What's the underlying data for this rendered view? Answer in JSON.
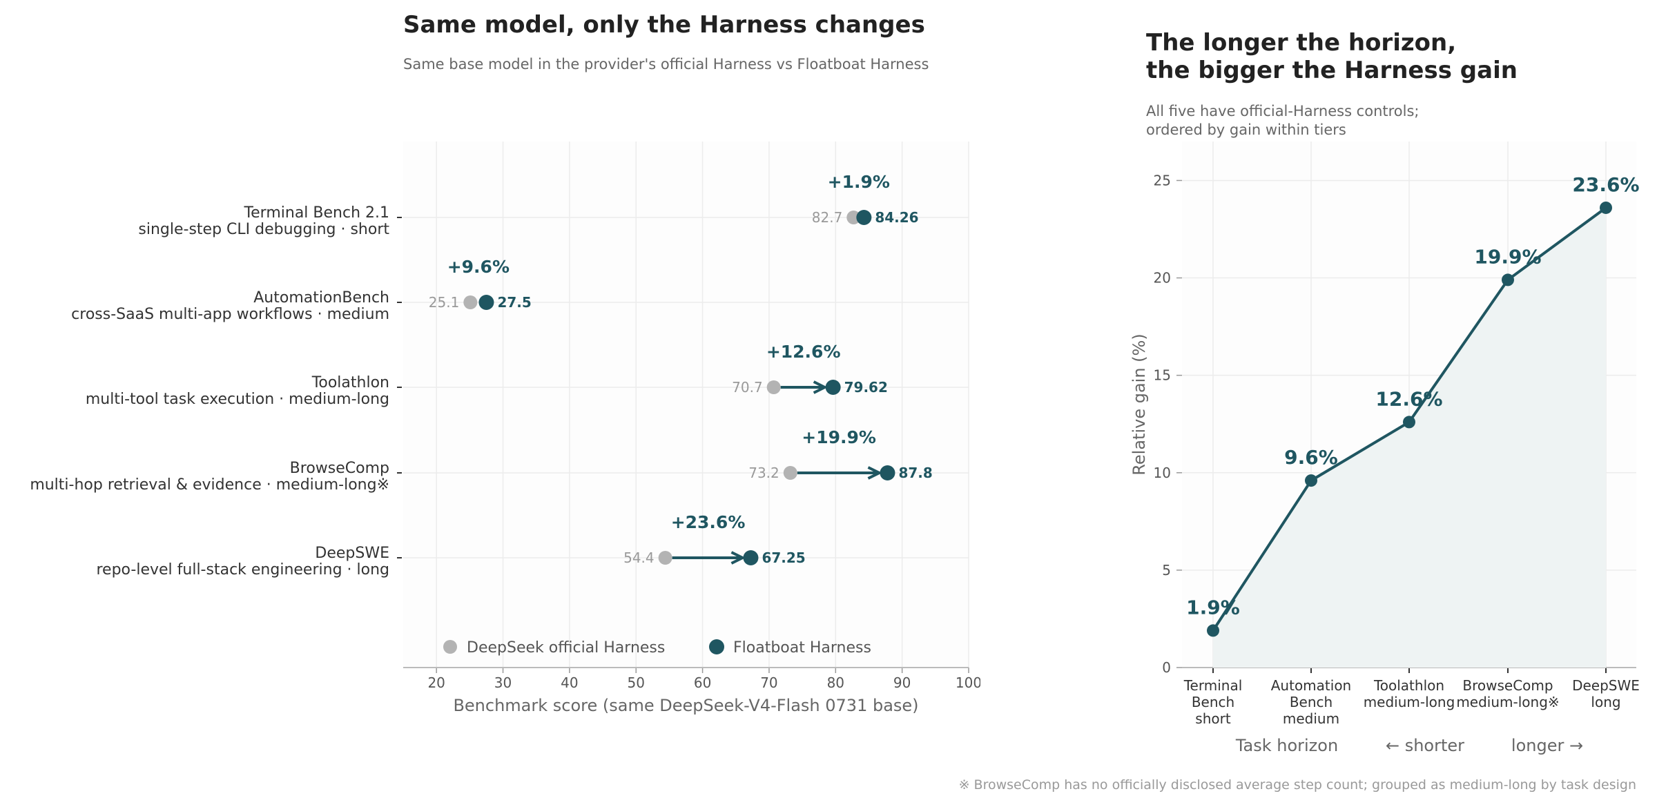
{
  "left_panel": {
    "title": "Same model, only the Harness changes",
    "subtitle": "Same base model in the provider's official Harness vs Floatboat Harness"
  },
  "right_panel": {
    "title_line1": "The longer the horizon,",
    "title_line2": "the bigger the Harness gain",
    "subtitle_line1": "All five have official-Harness controls;",
    "subtitle_line2": "ordered by gain within tiers"
  },
  "footnote": "※ BrowseComp has no officially disclosed average step count; grouped as medium-long by task design",
  "colors": {
    "official": "#b3b3b3",
    "floatboat": "#1f5661",
    "gain_text": "#1f5661",
    "grid": "#ececec",
    "area_fill": "#eef3f3"
  },
  "chart_data": [
    {
      "type": "dumbbell",
      "xlabel": "Benchmark score (same DeepSeek-V4-Flash 0731 base)",
      "xlim": [
        15,
        100
      ],
      "xticks": [
        20,
        30,
        40,
        50,
        60,
        70,
        80,
        90,
        100
      ],
      "grid": true,
      "legend_position": "bottom-left",
      "series": [
        {
          "name": "DeepSeek official Harness"
        },
        {
          "name": "Floatboat Harness"
        }
      ],
      "rows": [
        {
          "label": "Terminal Bench 2.1",
          "sublabel": "single-step CLI debugging · short",
          "official": 82.7,
          "official_label": "82.7",
          "floatboat": 84.26,
          "floatboat_label": "84.26",
          "gain_label": "+1.9%"
        },
        {
          "label": "AutomationBench",
          "sublabel": "cross-SaaS multi-app workflows · medium",
          "official": 25.1,
          "official_label": "25.1",
          "floatboat": 27.5,
          "floatboat_label": "27.5",
          "gain_label": "+9.6%"
        },
        {
          "label": "Toolathlon",
          "sublabel": "multi-tool task execution · medium-long",
          "official": 70.7,
          "official_label": "70.7",
          "floatboat": 79.62,
          "floatboat_label": "79.62",
          "gain_label": "+12.6%"
        },
        {
          "label": "BrowseComp",
          "sublabel": "multi-hop retrieval & evidence · medium-long※",
          "official": 73.2,
          "official_label": "73.2",
          "floatboat": 87.8,
          "floatboat_label": "87.8",
          "gain_label": "+19.9%"
        },
        {
          "label": "DeepSWE",
          "sublabel": "repo-level full-stack engineering · long",
          "official": 54.4,
          "official_label": "54.4",
          "floatboat": 67.25,
          "floatboat_label": "67.25",
          "gain_label": "+23.6%"
        }
      ]
    },
    {
      "type": "area",
      "ylabel": "Relative gain (%)",
      "xlabel": "Task horizon",
      "xlabel_left": "← shorter",
      "xlabel_right": "longer →",
      "ylim": [
        0,
        27
      ],
      "yticks": [
        0,
        5,
        10,
        15,
        20,
        25
      ],
      "grid": true,
      "categories": [
        [
          "Terminal",
          "Bench",
          "short"
        ],
        [
          "Automation",
          "Bench",
          "medium"
        ],
        [
          "Toolathlon",
          "medium-long"
        ],
        [
          "BrowseComp",
          "medium-long※"
        ],
        [
          "DeepSWE",
          "long"
        ]
      ],
      "values": [
        1.9,
        9.6,
        12.6,
        19.9,
        23.6
      ],
      "value_labels": [
        "1.9%",
        "9.6%",
        "12.6%",
        "19.9%",
        "23.6%"
      ]
    }
  ]
}
